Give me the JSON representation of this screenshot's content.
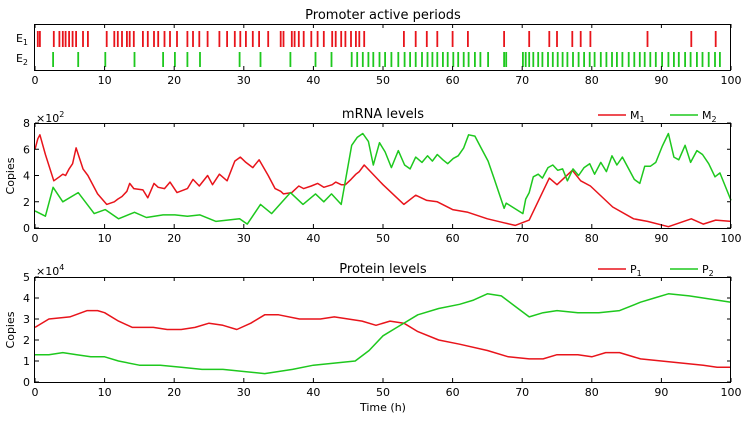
{
  "colors": {
    "red": "#e8141b",
    "green": "#1ec81e",
    "axis": "#000000"
  },
  "chart_data": [
    {
      "type": "event-raster",
      "title": "Promoter active periods",
      "xlim": [
        0,
        100
      ],
      "xticks": [
        "0",
        "10",
        "20",
        "30",
        "40",
        "50",
        "60",
        "70",
        "80",
        "90",
        "100"
      ],
      "rows": [
        {
          "name": "E",
          "sub": "1",
          "color": "#e8141b",
          "events": [
            0.4,
            0.7,
            2.7,
            3.5,
            4,
            4.4,
            4.9,
            5.4,
            5.9,
            6.9,
            7.6,
            10.3,
            11.4,
            11.9,
            12.5,
            13.2,
            13.6,
            14.2,
            15.5,
            16.2,
            17.1,
            17.7,
            18.6,
            19.4,
            20.4,
            21.9,
            22.7,
            23.6,
            24.8,
            26.5,
            27.6,
            28.7,
            29.5,
            30.3,
            31.3,
            32.2,
            33.5,
            35.3,
            35.7,
            36.9,
            37.3,
            37.9,
            38.6,
            39.7,
            40.6,
            41.5,
            42.7,
            43.2,
            44,
            44.6,
            45.4,
            46.1,
            46.6,
            47.3,
            53,
            54.7,
            56.3,
            57.8,
            60,
            62.2,
            67.4,
            71,
            73.9,
            75,
            77.2,
            78.4,
            79.8,
            88,
            94.3,
            97.8
          ]
        },
        {
          "name": "E",
          "sub": "2",
          "color": "#1ec81e",
          "events": [
            2.6,
            6.2,
            10.1,
            14.3,
            18.4,
            20.1,
            21.9,
            23.7,
            29.4,
            32.4,
            36.7,
            40.3,
            42.6,
            45.5,
            46.3,
            47.1,
            47.9,
            48.6,
            49.5,
            50.3,
            51.2,
            52.2,
            53.1,
            53.9,
            54.7,
            55.6,
            56.4,
            57.1,
            57.8,
            58.6,
            59.3,
            60.1,
            60.8,
            61.6,
            62.3,
            63.2,
            64,
            65.1,
            67.4,
            67.7,
            70.1,
            70.5,
            71,
            71.6,
            72.3,
            72.9,
            73.7,
            74.4,
            75.1,
            75.8,
            76.5,
            77.3,
            78.1,
            78.9,
            79.7,
            80.4,
            81.3,
            82.1,
            82.9,
            83.6,
            84.4,
            85.3,
            86.1,
            86.9,
            87.6,
            88.4,
            89.2,
            90.1,
            91,
            91.8,
            92.5,
            93.4,
            94.2,
            95.1,
            95.9,
            96.8,
            97.7,
            98.4
          ]
        }
      ]
    },
    {
      "type": "line",
      "title": "mRNA levels",
      "multiplier_base": "×10",
      "multiplier_exp": "2",
      "ylabel": "Copies",
      "xlim": [
        0,
        100
      ],
      "ylim": [
        0,
        8
      ],
      "xticks": [
        "0",
        "10",
        "20",
        "30",
        "40",
        "50",
        "60",
        "70",
        "80",
        "90",
        "100"
      ],
      "yticks": [
        "0",
        "2",
        "4",
        "6",
        "8"
      ],
      "series": [
        {
          "name": "M",
          "sub": "1",
          "color": "#e8141b",
          "x": [
            0,
            0.4,
            0.7,
            1.5,
            2.7,
            3.5,
            4,
            4.4,
            4.9,
            5.4,
            5.9,
            6.9,
            7.6,
            9,
            10.3,
            11.4,
            11.9,
            12.5,
            13.2,
            13.6,
            14.2,
            15.5,
            16.2,
            17.1,
            17.7,
            18.6,
            19.4,
            20.4,
            21.9,
            22.7,
            23.6,
            24.8,
            25.5,
            26.5,
            27.6,
            28.7,
            29.5,
            30.3,
            31.3,
            32.2,
            33.5,
            34.5,
            35.3,
            35.7,
            36.9,
            37.3,
            37.9,
            38.6,
            39.7,
            40.6,
            41.5,
            42.7,
            43.2,
            44,
            44.6,
            45.4,
            46.1,
            46.6,
            47.3,
            50,
            53,
            54.7,
            56.3,
            57.8,
            60,
            62.2,
            65,
            67.4,
            69,
            71,
            73.9,
            75,
            77.2,
            78.4,
            79.8,
            83,
            86,
            88,
            91,
            94.3,
            96,
            97.8,
            100
          ],
          "y": [
            6.0,
            6.8,
            7.1,
            5.6,
            3.6,
            3.9,
            4.1,
            4.0,
            4.5,
            4.9,
            6.1,
            4.5,
            4.0,
            2.6,
            1.8,
            2.0,
            2.2,
            2.4,
            2.8,
            3.4,
            3.0,
            2.9,
            2.3,
            3.4,
            3.1,
            3.0,
            3.5,
            2.7,
            3.0,
            3.7,
            3.2,
            4.0,
            3.3,
            4.1,
            3.6,
            5.1,
            5.4,
            5.0,
            4.6,
            5.2,
            4.0,
            3.0,
            2.8,
            2.6,
            2.7,
            2.9,
            3.2,
            3.0,
            3.2,
            3.4,
            3.1,
            3.3,
            3.5,
            3.3,
            3.3,
            3.7,
            4.1,
            4.3,
            4.8,
            3.3,
            1.8,
            2.5,
            2.1,
            2.0,
            1.4,
            1.2,
            0.7,
            0.4,
            0.2,
            0.6,
            3.8,
            3.3,
            4.4,
            3.6,
            3.2,
            1.6,
            0.7,
            0.5,
            0.1,
            0.7,
            0.3,
            0.6,
            0.5
          ]
        },
        {
          "name": "M",
          "sub": "2",
          "color": "#1ec81e",
          "x": [
            0,
            1.5,
            2.6,
            4,
            6.2,
            8.5,
            10.1,
            12,
            14.3,
            16,
            18.4,
            20.1,
            21.9,
            23.7,
            26,
            29.4,
            30.5,
            32.4,
            34,
            36.7,
            38.5,
            40.3,
            41.5,
            42.6,
            44,
            45.5,
            46.3,
            47.1,
            47.9,
            48.6,
            49.5,
            50.3,
            51.2,
            52.2,
            53.1,
            53.9,
            54.7,
            55.6,
            56.4,
            57.1,
            57.8,
            58.6,
            59.3,
            60.1,
            60.8,
            61.6,
            62.3,
            63.2,
            64,
            65.1,
            66,
            67.4,
            67.7,
            70.1,
            70.5,
            71,
            71.6,
            72.3,
            72.9,
            73.7,
            74.4,
            75.1,
            75.8,
            76.5,
            77.3,
            78.1,
            78.9,
            79.7,
            80.4,
            81.3,
            82.1,
            82.9,
            83.6,
            84.4,
            85.3,
            86.1,
            86.9,
            87.6,
            88.4,
            89.2,
            90.1,
            91,
            91.8,
            92.5,
            93.4,
            94.2,
            95.1,
            95.9,
            96.8,
            97.7,
            98.4,
            100
          ],
          "y": [
            1.3,
            0.9,
            3.1,
            2.0,
            2.7,
            1.1,
            1.4,
            0.7,
            1.2,
            0.8,
            1.0,
            1.0,
            0.9,
            1.0,
            0.5,
            0.7,
            0.3,
            1.8,
            1.1,
            2.7,
            1.8,
            2.6,
            2.0,
            2.6,
            1.8,
            6.3,
            6.9,
            7.2,
            6.6,
            4.8,
            6.5,
            5.8,
            4.6,
            5.9,
            4.8,
            4.5,
            5.4,
            5.0,
            5.5,
            5.1,
            5.6,
            5.2,
            4.9,
            5.3,
            5.5,
            6.1,
            7.1,
            7.0,
            6.2,
            5.1,
            3.7,
            1.5,
            1.9,
            1.1,
            2.2,
            2.7,
            3.9,
            4.1,
            3.8,
            4.6,
            4.8,
            4.4,
            4.5,
            3.6,
            4.5,
            4.0,
            4.6,
            4.9,
            4.1,
            5.0,
            4.3,
            5.5,
            4.8,
            5.4,
            4.5,
            3.7,
            3.4,
            4.7,
            4.7,
            5.0,
            6.2,
            7.2,
            5.4,
            5.2,
            6.3,
            5.0,
            5.9,
            5.6,
            4.9,
            3.9,
            4.2,
            2.1
          ]
        }
      ]
    },
    {
      "type": "line",
      "title": "Protein levels",
      "multiplier_base": "×10",
      "multiplier_exp": "4",
      "ylabel": "Copies",
      "xlabel": "Time (h)",
      "xlim": [
        0,
        100
      ],
      "ylim": [
        0,
        5
      ],
      "xticks": [
        "0",
        "10",
        "20",
        "30",
        "40",
        "50",
        "60",
        "70",
        "80",
        "90",
        "100"
      ],
      "yticks": [
        "0",
        "1",
        "2",
        "3",
        "4",
        "5"
      ],
      "series": [
        {
          "name": "P",
          "sub": "1",
          "color": "#e8141b",
          "x": [
            0,
            2,
            5,
            7.5,
            9,
            10,
            12,
            14,
            17,
            19,
            21,
            23,
            25,
            27,
            29,
            31,
            33,
            35,
            38,
            41,
            43,
            45,
            47,
            49,
            51,
            53,
            55,
            58,
            61,
            65,
            68,
            71,
            73,
            75,
            78,
            80,
            82,
            84,
            87,
            90,
            93,
            96,
            98,
            100
          ],
          "y": [
            2.6,
            3.0,
            3.1,
            3.4,
            3.4,
            3.3,
            2.9,
            2.6,
            2.6,
            2.5,
            2.5,
            2.6,
            2.8,
            2.7,
            2.5,
            2.8,
            3.2,
            3.2,
            3.0,
            3.0,
            3.1,
            3.0,
            2.9,
            2.7,
            2.9,
            2.8,
            2.4,
            2.0,
            1.8,
            1.5,
            1.2,
            1.1,
            1.1,
            1.3,
            1.3,
            1.2,
            1.4,
            1.4,
            1.1,
            1.0,
            0.9,
            0.8,
            0.7,
            0.7
          ]
        },
        {
          "name": "P",
          "sub": "2",
          "color": "#1ec81e",
          "x": [
            0,
            2,
            4,
            6,
            8,
            10,
            12,
            15,
            18,
            21,
            24,
            27,
            30,
            33,
            35,
            37,
            40,
            43,
            46,
            48,
            50,
            52,
            55,
            58,
            61,
            63,
            65,
            67,
            69,
            71,
            73,
            75,
            78,
            81,
            84,
            87,
            89,
            91,
            94,
            96,
            98,
            100
          ],
          "y": [
            1.3,
            1.3,
            1.4,
            1.3,
            1.2,
            1.2,
            1.0,
            0.8,
            0.8,
            0.7,
            0.6,
            0.6,
            0.5,
            0.4,
            0.5,
            0.6,
            0.8,
            0.9,
            1.0,
            1.5,
            2.2,
            2.6,
            3.2,
            3.5,
            3.7,
            3.9,
            4.2,
            4.1,
            3.6,
            3.1,
            3.3,
            3.4,
            3.3,
            3.3,
            3.4,
            3.8,
            4.0,
            4.2,
            4.1,
            4.0,
            3.9,
            3.8
          ]
        }
      ]
    }
  ]
}
